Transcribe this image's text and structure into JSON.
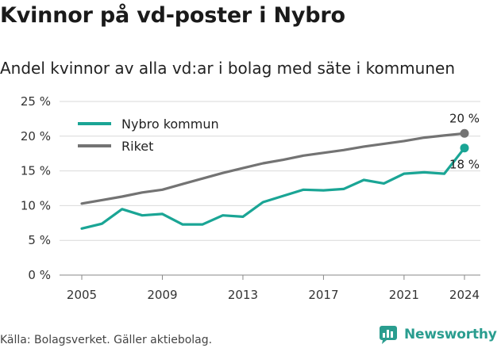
{
  "header": {
    "title": "Kvinnor på vd-poster i Nybro",
    "subtitle": "Andel kvinnor av alla vd:ar i bolag med säte i kommunen"
  },
  "footer": {
    "source": "Källa: Bolagsverket. Gäller aktiebolag.",
    "brand": "Newsworthy"
  },
  "colors": {
    "nybro": "#1aa595",
    "riket": "#737373",
    "grid": "#d9d9d9",
    "brand": "#2a9d8f"
  },
  "chart_data": {
    "type": "line",
    "x": [
      2005,
      2006,
      2007,
      2008,
      2009,
      2010,
      2011,
      2012,
      2013,
      2014,
      2015,
      2016,
      2017,
      2018,
      2019,
      2020,
      2021,
      2022,
      2023,
      2024
    ],
    "xticks": [
      "2005",
      "2009",
      "2013",
      "2017",
      "2021",
      "2024"
    ],
    "xtick_values": [
      2005,
      2009,
      2013,
      2017,
      2021,
      2024
    ],
    "yticks": [
      "0 %",
      "5 %",
      "10 %",
      "15 %",
      "20 %",
      "25 %"
    ],
    "ytick_values": [
      0,
      5,
      10,
      15,
      20,
      25
    ],
    "ylim": [
      0,
      25
    ],
    "xlim": [
      2005,
      2024
    ],
    "grid": "horizontal",
    "legend": "top-left",
    "series": [
      {
        "name": "Nybro kommun",
        "color": "#1aa595",
        "values": [
          6.7,
          7.4,
          9.5,
          8.6,
          8.8,
          7.3,
          7.3,
          8.6,
          8.4,
          10.5,
          11.4,
          12.3,
          12.2,
          12.4,
          13.7,
          13.2,
          14.6,
          14.8,
          14.6,
          18.3
        ],
        "end_label": "18 %"
      },
      {
        "name": "Riket",
        "color": "#737373",
        "values": [
          10.3,
          10.8,
          11.3,
          11.9,
          12.3,
          13.1,
          13.9,
          14.7,
          15.4,
          16.1,
          16.6,
          17.2,
          17.6,
          18.0,
          18.5,
          18.9,
          19.3,
          19.8,
          20.1,
          20.4
        ],
        "end_label": "20 %"
      }
    ]
  }
}
